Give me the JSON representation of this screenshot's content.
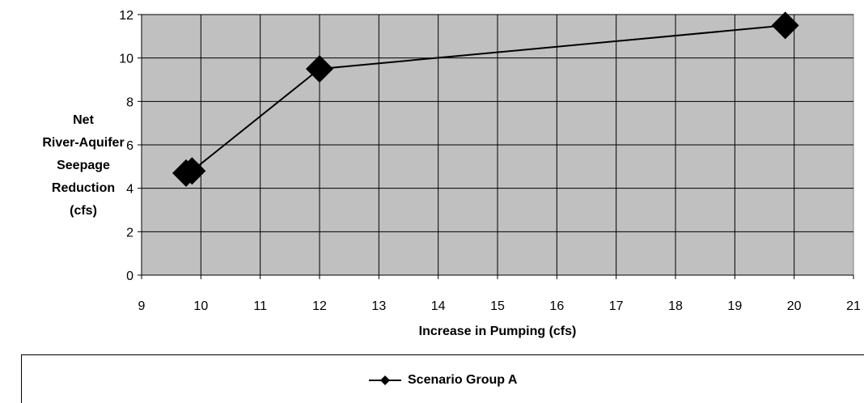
{
  "chart_data": {
    "type": "scatter",
    "xlabel": "Increase in Pumping (cfs)",
    "ylabel_lines": [
      "Net",
      "River-Aquifer",
      "Seepage",
      "Reduction",
      "(cfs)"
    ],
    "xlim": [
      9,
      21
    ],
    "ylim": [
      0,
      12
    ],
    "xticks": [
      "9",
      "10",
      "11",
      "12",
      "13",
      "14",
      "15",
      "16",
      "17",
      "18",
      "19",
      "20",
      "21"
    ],
    "yticks": [
      "0",
      "2",
      "4",
      "6",
      "8",
      "10",
      "12"
    ],
    "grid": true,
    "legend_position": "bottom",
    "series": [
      {
        "name": "Scenario Group A",
        "color": "#000000",
        "marker": "diamond",
        "x": [
          9.75,
          9.85,
          12.0,
          19.85
        ],
        "y": [
          4.7,
          4.8,
          9.5,
          11.5
        ]
      }
    ],
    "plot_background": "#c0c0c0"
  }
}
